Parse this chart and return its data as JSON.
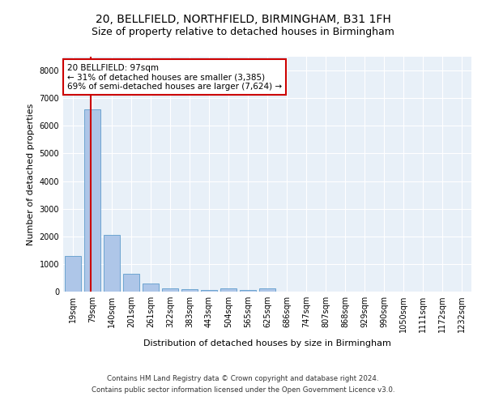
{
  "title_line1": "20, BELLFIELD, NORTHFIELD, BIRMINGHAM, B31 1FH",
  "title_line2": "Size of property relative to detached houses in Birmingham",
  "xlabel": "Distribution of detached houses by size in Birmingham",
  "ylabel": "Number of detached properties",
  "categories": [
    "19sqm",
    "79sqm",
    "140sqm",
    "201sqm",
    "261sqm",
    "322sqm",
    "383sqm",
    "443sqm",
    "504sqm",
    "565sqm",
    "625sqm",
    "686sqm",
    "747sqm",
    "807sqm",
    "868sqm",
    "929sqm",
    "990sqm",
    "1050sqm",
    "1111sqm",
    "1172sqm",
    "1232sqm"
  ],
  "values": [
    1300,
    6600,
    2060,
    650,
    280,
    130,
    80,
    60,
    110,
    60,
    130,
    0,
    0,
    0,
    0,
    0,
    0,
    0,
    0,
    0,
    0
  ],
  "bar_color": "#aec6e8",
  "bar_edge_color": "#4a90c4",
  "property_line_x": 0.9,
  "property_line_color": "#cc0000",
  "annotation_text": "20 BELLFIELD: 97sqm\n← 31% of detached houses are smaller (3,385)\n69% of semi-detached houses are larger (7,624) →",
  "annotation_box_color": "#ffffff",
  "annotation_box_edge": "#cc0000",
  "ylim": [
    0,
    8500
  ],
  "yticks": [
    0,
    1000,
    2000,
    3000,
    4000,
    5000,
    6000,
    7000,
    8000
  ],
  "bg_color": "#e8f0f8",
  "footer_line1": "Contains HM Land Registry data © Crown copyright and database right 2024.",
  "footer_line2": "Contains public sector information licensed under the Open Government Licence v3.0.",
  "title_fontsize": 10,
  "subtitle_fontsize": 9,
  "axis_label_fontsize": 8,
  "tick_fontsize": 7,
  "annotation_fontsize": 7.5
}
